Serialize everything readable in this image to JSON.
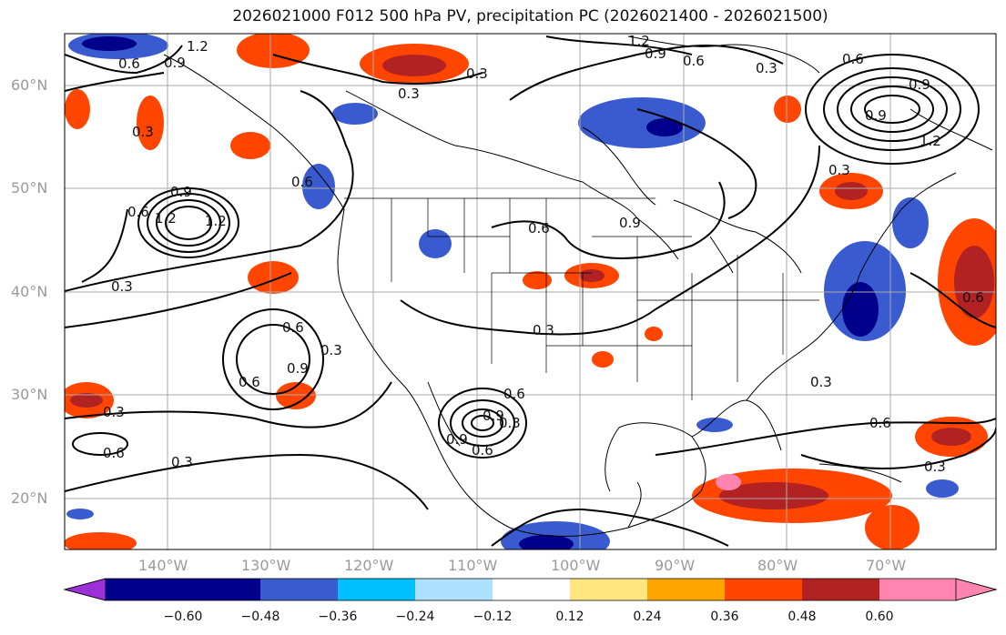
{
  "title": "2026021000 F012 500 hPa PV, precipitation PC (2026021400 - 2026021500)",
  "map": {
    "lat_ticks": [
      "60°N",
      "50°N",
      "40°N",
      "30°N",
      "20°N"
    ],
    "lon_ticks": [
      "140°W",
      "130°W",
      "120°W",
      "110°W",
      "100°W",
      "90°W",
      "80°W",
      "70°W"
    ],
    "contour_labels": [
      "1.2",
      "0.6",
      "0.9",
      "0.3",
      "0.3",
      "1.2",
      "0.9",
      "0.6",
      "0.3",
      "0.6",
      "0.9",
      "1.2",
      "0.9",
      "0.3",
      "0.3",
      "0.6",
      "0.9",
      "1.2",
      "1.2",
      "0.6",
      "0.3",
      "0.6",
      "0.9",
      "0.6",
      "0.3",
      "0.3",
      "0.9",
      "0.6",
      "0.3",
      "0.6",
      "0.6",
      "0.9",
      "0.3",
      "0.6",
      "0.9",
      "0.3",
      "0.3",
      "0.6",
      "0.3",
      "0.6"
    ]
  },
  "colorbar": {
    "labels": [
      "−0.60",
      "−0.48",
      "−0.36",
      "−0.24",
      "−0.12",
      "0.12",
      "0.24",
      "0.36",
      "0.48",
      "0.60"
    ],
    "colors": [
      "#9b30d9",
      "#00008b",
      "#3a5bd0",
      "#00bfff",
      "#b0e0ff",
      "#ffffff",
      "#ffe680",
      "#ffa500",
      "#ff4500",
      "#b22222",
      "#ff85b0"
    ]
  }
}
